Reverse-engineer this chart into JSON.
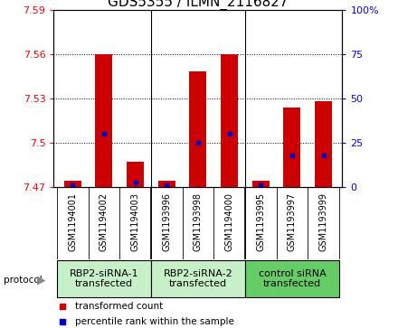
{
  "title": "GDS5355 / ILMN_2116827",
  "samples": [
    "GSM1194001",
    "GSM1194002",
    "GSM1194003",
    "GSM1193996",
    "GSM1193998",
    "GSM1194000",
    "GSM1193995",
    "GSM1193997",
    "GSM1193999"
  ],
  "red_values": [
    7.474,
    7.56,
    7.487,
    7.474,
    7.548,
    7.56,
    7.474,
    7.524,
    7.528
  ],
  "blue_percentiles": [
    1.0,
    30.0,
    2.5,
    1.0,
    25.0,
    30.0,
    1.0,
    18.0,
    18.0
  ],
  "ylim_left": [
    7.47,
    7.59
  ],
  "ylim_right": [
    0,
    100
  ],
  "yticks_left": [
    7.47,
    7.5,
    7.53,
    7.56,
    7.59
  ],
  "yticks_right": [
    0,
    25,
    50,
    75,
    100
  ],
  "ytick_labels_left": [
    "7.47",
    "7.5",
    "7.53",
    "7.56",
    "7.59"
  ],
  "ytick_labels_right": [
    "0",
    "25",
    "50",
    "75",
    "100%"
  ],
  "base_value": 7.47,
  "protocols": [
    {
      "label": "RBP2-siRNA-1\ntransfected",
      "start": 0,
      "end": 3,
      "color": "#c8f0c8"
    },
    {
      "label": "RBP2-siRNA-2\ntransfected",
      "start": 3,
      "end": 6,
      "color": "#c8f0c8"
    },
    {
      "label": "control siRNA\ntransfected",
      "start": 6,
      "end": 9,
      "color": "#66cc66"
    }
  ],
  "group_separators": [
    2.5,
    5.5
  ],
  "bar_width": 0.55,
  "bar_color": "#cc0000",
  "marker_color": "#0000cc",
  "bg_color": "#d8d8d8",
  "plot_bg": "#ffffff",
  "grid_color": "#000000",
  "title_fontsize": 11,
  "tick_fontsize": 8,
  "sample_fontsize": 7,
  "legend_fontsize": 7.5,
  "proto_fontsize": 8
}
